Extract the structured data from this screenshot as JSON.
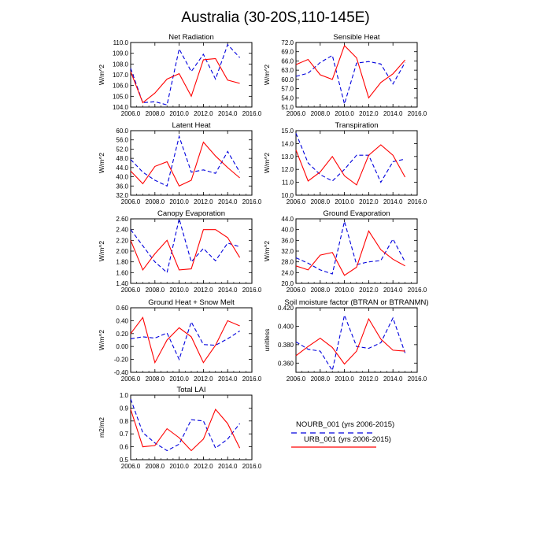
{
  "figure": {
    "title": "Australia (30-20S,110-145E)"
  },
  "legend": [
    {
      "label": "NOURB_001 (yrs 2006-2015)",
      "color": "#0000dd",
      "style": "dashed"
    },
    {
      "label": "URB_001 (yrs 2006-2015)",
      "color": "#ff0000",
      "style": "solid"
    }
  ],
  "chart_data": [
    {
      "type": "line",
      "title": "Net Radiation",
      "ylabel": "W/m^2",
      "xlim": [
        2006,
        2016
      ],
      "xticks": [
        "2006.0",
        "2008.0",
        "2010.0",
        "2012.0",
        "2014.0",
        "2016.0"
      ],
      "ylim": [
        104.0,
        110.0
      ],
      "yticks": [
        "104.0",
        "105.0",
        "106.0",
        "107.0",
        "108.0",
        "109.0",
        "110.0"
      ],
      "x": [
        2006,
        2007,
        2008,
        2009,
        2010,
        2011,
        2012,
        2013,
        2014,
        2015
      ],
      "series": [
        {
          "name": "NOURB_001 (yrs 2006-2015)",
          "values": [
            107.6,
            104.4,
            104.5,
            104.2,
            109.4,
            107.3,
            108.9,
            106.6,
            109.8,
            108.6
          ]
        },
        {
          "name": "URB_001 (yrs 2006-2015)",
          "values": [
            107.3,
            104.4,
            105.3,
            106.6,
            107.1,
            105.0,
            108.4,
            108.5,
            106.5,
            106.2
          ]
        }
      ]
    },
    {
      "type": "line",
      "title": "Sensible Heat",
      "ylabel": "W/m^2",
      "xlim": [
        2006,
        2016
      ],
      "xticks": [
        "2006.0",
        "2008.0",
        "2010.0",
        "2012.0",
        "2014.0",
        "2016.0"
      ],
      "ylim": [
        51.0,
        72.0
      ],
      "yticks": [
        "51.0",
        "54.0",
        "57.0",
        "60.0",
        "63.0",
        "66.0",
        "69.0",
        "72.0"
      ],
      "x": [
        2006,
        2007,
        2008,
        2009,
        2010,
        2011,
        2012,
        2013,
        2014,
        2015
      ],
      "series": [
        {
          "name": "NOURB_001 (yrs 2006-2015)",
          "values": [
            61.0,
            62.0,
            65.5,
            67.8,
            52.0,
            65.3,
            65.8,
            65.0,
            58.5,
            65.5
          ]
        },
        {
          "name": "URB_001 (yrs 2006-2015)",
          "values": [
            64.8,
            66.5,
            61.5,
            60.0,
            71.0,
            67.0,
            54.0,
            59.0,
            61.8,
            66.3
          ]
        }
      ]
    },
    {
      "type": "line",
      "title": "Latent Heat",
      "ylabel": "W/m^2",
      "xlim": [
        2006,
        2016
      ],
      "xticks": [
        "2006.0",
        "2008.0",
        "2010.0",
        "2012.0",
        "2014.0",
        "2016.0"
      ],
      "ylim": [
        32.0,
        60.0
      ],
      "yticks": [
        "32.0",
        "36.0",
        "40.0",
        "44.0",
        "48.0",
        "52.0",
        "56.0",
        "60.0"
      ],
      "x": [
        2006,
        2007,
        2008,
        2009,
        2010,
        2011,
        2012,
        2013,
        2014,
        2015
      ],
      "series": [
        {
          "name": "NOURB_001 (yrs 2006-2015)",
          "values": [
            47.5,
            42.0,
            38.5,
            36.0,
            57.5,
            42.0,
            43.0,
            41.5,
            51.0,
            42.0
          ]
        },
        {
          "name": "URB_001 (yrs 2006-2015)",
          "values": [
            42.5,
            37.0,
            44.5,
            46.5,
            36.0,
            38.5,
            55.0,
            49.0,
            44.0,
            39.5
          ]
        }
      ]
    },
    {
      "type": "line",
      "title": "Transpiration",
      "ylabel": "W/m^2",
      "xlim": [
        2006,
        2016
      ],
      "xticks": [
        "2006.0",
        "2008.0",
        "2010.0",
        "2012.0",
        "2014.0",
        "2016.0"
      ],
      "ylim": [
        10.0,
        15.0
      ],
      "yticks": [
        "10.0",
        "11.0",
        "12.0",
        "13.0",
        "14.0",
        "15.0"
      ],
      "x": [
        2006,
        2007,
        2008,
        2009,
        2010,
        2011,
        2012,
        2013,
        2014,
        2015
      ],
      "series": [
        {
          "name": "NOURB_001 (yrs 2006-2015)",
          "values": [
            14.8,
            12.5,
            11.6,
            11.1,
            12.0,
            13.1,
            13.1,
            11.0,
            12.6,
            12.8
          ]
        },
        {
          "name": "URB_001 (yrs 2006-2015)",
          "values": [
            13.5,
            11.1,
            11.8,
            13.0,
            11.5,
            10.8,
            13.1,
            13.9,
            13.1,
            11.4
          ]
        }
      ]
    },
    {
      "type": "line",
      "title": "Canopy Evaporation",
      "ylabel": "W/m^2",
      "xlim": [
        2006,
        2016
      ],
      "xticks": [
        "2006.0",
        "2008.0",
        "2010.0",
        "2012.0",
        "2014.0",
        "2016.0"
      ],
      "ylim": [
        1.4,
        2.6
      ],
      "yticks": [
        "1.40",
        "1.60",
        "1.80",
        "2.00",
        "2.20",
        "2.40",
        "2.60"
      ],
      "x": [
        2006,
        2007,
        2008,
        2009,
        2010,
        2011,
        2012,
        2013,
        2014,
        2015
      ],
      "series": [
        {
          "name": "NOURB_001 (yrs 2006-2015)",
          "values": [
            2.4,
            2.1,
            1.8,
            1.6,
            2.6,
            1.8,
            2.05,
            1.82,
            2.15,
            2.08
          ]
        },
        {
          "name": "URB_001 (yrs 2006-2015)",
          "values": [
            2.2,
            1.65,
            1.95,
            2.2,
            1.65,
            1.67,
            2.4,
            2.4,
            2.25,
            1.88
          ]
        }
      ]
    },
    {
      "type": "line",
      "title": "Ground Evaporation",
      "ylabel": "W/m^2",
      "xlim": [
        2006,
        2016
      ],
      "xticks": [
        "2006.0",
        "2008.0",
        "2010.0",
        "2012.0",
        "2014.0",
        "2016.0"
      ],
      "ylim": [
        20.0,
        44.0
      ],
      "yticks": [
        "20.0",
        "24.0",
        "28.0",
        "32.0",
        "36.0",
        "40.0",
        "44.0"
      ],
      "x": [
        2006,
        2007,
        2008,
        2009,
        2010,
        2011,
        2012,
        2013,
        2014,
        2015
      ],
      "series": [
        {
          "name": "NOURB_001 (yrs 2006-2015)",
          "values": [
            29.5,
            27.5,
            25.0,
            23.5,
            43.0,
            27.0,
            28.0,
            28.5,
            36.5,
            28.0
          ]
        },
        {
          "name": "URB_001 (yrs 2006-2015)",
          "values": [
            26.5,
            25.0,
            30.5,
            31.5,
            23.0,
            26.0,
            39.5,
            32.5,
            29.0,
            26.5
          ]
        }
      ]
    },
    {
      "type": "line",
      "title": "Ground Heat + Snow Melt",
      "ylabel": "W/m^2",
      "xlim": [
        2006,
        2016
      ],
      "xticks": [
        "2006.0",
        "2008.0",
        "2010.0",
        "2012.0",
        "2014.0",
        "2016.0"
      ],
      "ylim": [
        -0.4,
        0.6
      ],
      "yticks": [
        "-0.40",
        "-0.20",
        "0.00",
        "0.20",
        "0.40",
        "0.60"
      ],
      "x": [
        2006,
        2007,
        2008,
        2009,
        2010,
        2011,
        2012,
        2013,
        2014,
        2015
      ],
      "series": [
        {
          "name": "NOURB_001 (yrs 2006-2015)",
          "values": [
            0.12,
            0.15,
            0.13,
            0.21,
            -0.2,
            0.38,
            0.03,
            0.02,
            0.12,
            0.24
          ]
        },
        {
          "name": "URB_001 (yrs 2006-2015)",
          "values": [
            0.2,
            0.45,
            -0.25,
            0.1,
            0.29,
            0.15,
            -0.25,
            0.02,
            0.4,
            0.32
          ]
        }
      ]
    },
    {
      "type": "line",
      "title": "Soil moisture factor (BTRAN or BTRANMN)",
      "ylabel": "unitless",
      "xlim": [
        2006,
        2016
      ],
      "xticks": [
        "2006.0",
        "2008.0",
        "2010.0",
        "2012.0",
        "2014.0",
        "2016.0"
      ],
      "ylim": [
        0.35,
        0.42
      ],
      "yticks": [
        "0.360",
        "0.380",
        "0.400",
        "0.420"
      ],
      "x": [
        2006,
        2007,
        2008,
        2009,
        2010,
        2011,
        2012,
        2013,
        2014,
        2015
      ],
      "series": [
        {
          "name": "NOURB_001 (yrs 2006-2015)",
          "values": [
            0.383,
            0.375,
            0.373,
            0.352,
            0.412,
            0.378,
            0.376,
            0.382,
            0.409,
            0.371
          ]
        },
        {
          "name": "URB_001 (yrs 2006-2015)",
          "values": [
            0.368,
            0.378,
            0.387,
            0.377,
            0.359,
            0.373,
            0.408,
            0.386,
            0.374,
            0.373
          ]
        }
      ]
    },
    {
      "type": "line",
      "title": "Total LAI",
      "ylabel": "m2/m2",
      "xlim": [
        2006,
        2016
      ],
      "xticks": [
        "2006.0",
        "2008.0",
        "2010.0",
        "2012.0",
        "2014.0",
        "2016.0"
      ],
      "ylim": [
        0.5,
        1.0
      ],
      "yticks": [
        "0.5",
        "0.6",
        "0.7",
        "0.8",
        "0.9",
        "1.0"
      ],
      "x": [
        2006,
        2007,
        2008,
        2009,
        2010,
        2011,
        2012,
        2013,
        2014,
        2015
      ],
      "series": [
        {
          "name": "NOURB_001 (yrs 2006-2015)",
          "values": [
            0.97,
            0.71,
            0.63,
            0.57,
            0.62,
            0.81,
            0.8,
            0.59,
            0.66,
            0.78
          ]
        },
        {
          "name": "URB_001 (yrs 2006-2015)",
          "values": [
            0.89,
            0.6,
            0.61,
            0.74,
            0.67,
            0.57,
            0.66,
            0.89,
            0.78,
            0.59
          ]
        }
      ]
    }
  ]
}
